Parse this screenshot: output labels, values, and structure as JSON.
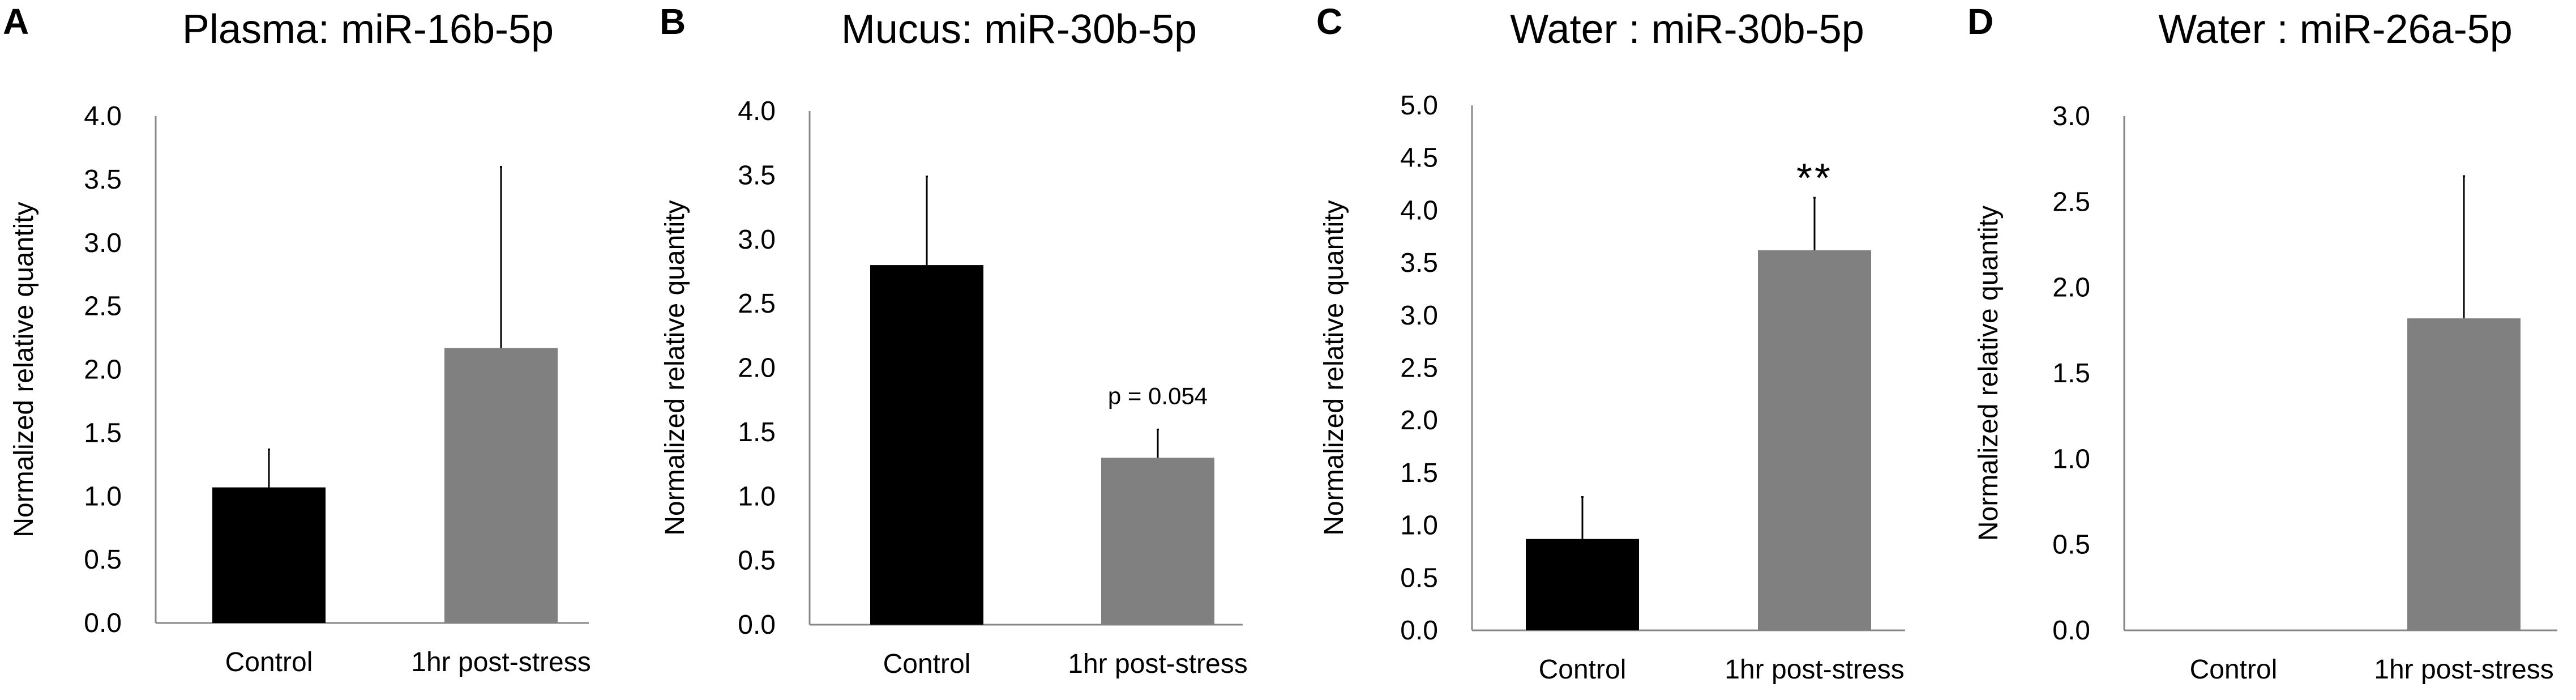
{
  "chart_data": [
    {
      "panel": "A",
      "type": "bar",
      "title": "Plasma: miR-16b-5p",
      "ylabel": "Normalized relative quantity",
      "xlabel": "",
      "ylim": [
        0,
        4.0
      ],
      "yticks": [
        "0.0",
        "0.5",
        "1.0",
        "1.5",
        "2.0",
        "2.5",
        "3.0",
        "3.5",
        "4.0"
      ],
      "categories": [
        "Control",
        "1hr post-stress"
      ],
      "values": [
        1.07,
        2.17
      ],
      "errors": [
        0.3,
        1.43
      ],
      "colors": [
        "#000000",
        "#808080"
      ],
      "annotations": [
        null,
        null
      ]
    },
    {
      "panel": "B",
      "type": "bar",
      "title": "Mucus: miR-30b-5p",
      "ylabel": "Normalized relative quantity",
      "xlabel": "",
      "ylim": [
        0,
        4.0
      ],
      "yticks": [
        "0.0",
        "0.5",
        "1.0",
        "1.5",
        "2.0",
        "2.5",
        "3.0",
        "3.5",
        "4.0"
      ],
      "categories": [
        "Control",
        "1hr post-stress"
      ],
      "values": [
        2.8,
        1.3
      ],
      "errors": [
        0.69,
        0.22
      ],
      "colors": [
        "#000000",
        "#808080"
      ],
      "annotations": [
        null,
        "p = 0.054"
      ]
    },
    {
      "panel": "C",
      "type": "bar",
      "title": "Water : miR-30b-5p",
      "ylabel": "Normalized relative quantity",
      "xlabel": "",
      "ylim": [
        0,
        5.0
      ],
      "yticks": [
        "0.0",
        "0.5",
        "1.0",
        "1.5",
        "2.0",
        "2.5",
        "3.0",
        "3.5",
        "4.0",
        "4.5",
        "5.0"
      ],
      "categories": [
        "Control",
        "1hr post-stress"
      ],
      "values": [
        0.87,
        3.62
      ],
      "errors": [
        0.4,
        0.5
      ],
      "colors": [
        "#000000",
        "#808080"
      ],
      "annotations": [
        null,
        "**"
      ]
    },
    {
      "panel": "D",
      "type": "bar",
      "title": "Water : miR-26a-5p",
      "ylabel": "Normalized relative quantity",
      "xlabel": "",
      "ylim": [
        0,
        3.0
      ],
      "yticks": [
        "0.0",
        "0.5",
        "1.0",
        "1.5",
        "2.0",
        "2.5",
        "3.0"
      ],
      "categories": [
        "Control",
        "1hr post-stress"
      ],
      "values": [
        0,
        1.82
      ],
      "errors": [
        0,
        0.83
      ],
      "colors": [
        "#000000",
        "#808080"
      ],
      "annotations": [
        null,
        null
      ]
    }
  ]
}
